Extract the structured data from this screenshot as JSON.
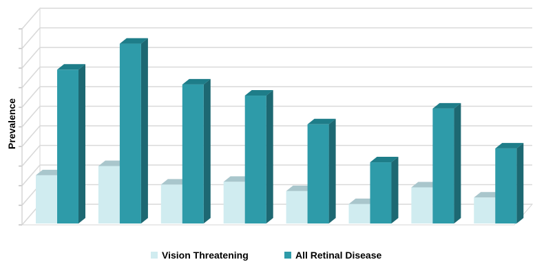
{
  "chart_data": {
    "type": "bar",
    "title": "",
    "xlabel": "",
    "ylabel": "Prevalence",
    "categories": [
      "",
      "",
      "",
      "",
      "",
      "",
      "",
      ""
    ],
    "ylim": [
      0,
      10.5
    ],
    "grid": true,
    "three_d": true,
    "legend_position": "bottom",
    "series": [
      {
        "name": "Vision Threatening",
        "color": "#d0ecf0",
        "top_color": "#a9c6cc",
        "side_color": "#b4d5db",
        "values": [
          2.6,
          3.1,
          2.1,
          2.25,
          1.75,
          1.05,
          1.95,
          1.4
        ]
      },
      {
        "name": "All Retinal Disease",
        "color": "#2e9ba9",
        "top_color": "#1e7d89",
        "side_color": "#1d6872",
        "values": [
          8.3,
          9.7,
          7.5,
          6.9,
          5.35,
          3.3,
          6.2,
          4.05
        ]
      }
    ]
  }
}
